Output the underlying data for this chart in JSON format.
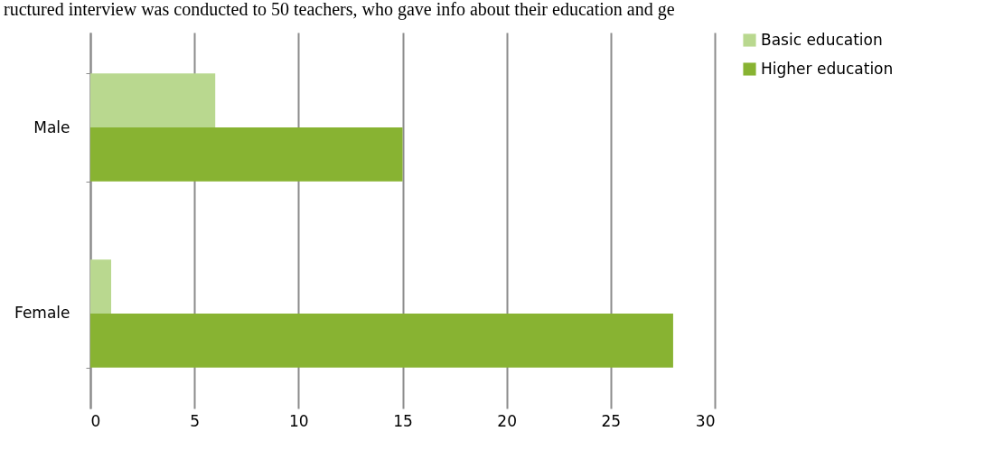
{
  "chart_data": {
    "type": "bar",
    "orientation": "horizontal",
    "annotations": [
      "ructured interview was conducted to 50 teachers, who gave info about their education and ge"
    ],
    "categories": [
      "Male",
      "Female"
    ],
    "series": [
      {
        "name": "Basic education",
        "color": "#b9d88f",
        "values": [
          6,
          1
        ]
      },
      {
        "name": "Higher education",
        "color": "#88b332",
        "values": [
          15,
          28
        ]
      }
    ],
    "xlim": [
      0,
      30
    ],
    "xticks": [
      0,
      5,
      10,
      15,
      20,
      25,
      30
    ],
    "grid": "x",
    "legend": "right"
  }
}
